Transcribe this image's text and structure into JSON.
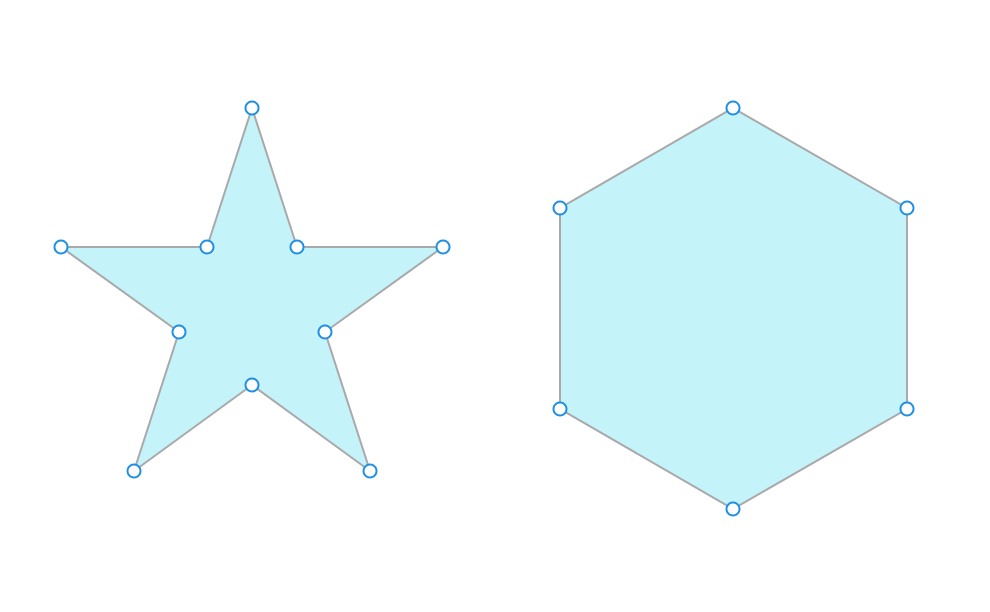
{
  "colors": {
    "shape_fill": "#c4f3fa",
    "shape_stroke": "#a9a9a9",
    "handle_stroke": "#1f8fe6",
    "handle_fill": "#ffffff",
    "background": "#ffffff"
  },
  "shapes": [
    {
      "name": "star",
      "vertex_handles": 10
    },
    {
      "name": "hexagon",
      "vertex_handles": 6
    }
  ]
}
